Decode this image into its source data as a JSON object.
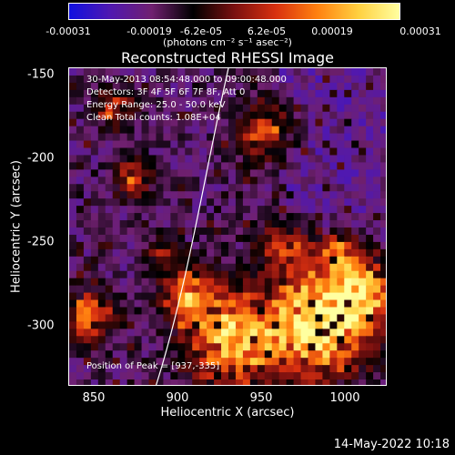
{
  "colorbar": {
    "ticks": [
      "-0.00031",
      "-0.00019",
      "-6.2e-05",
      "6.2e-05",
      "0.00019",
      "0.00031"
    ],
    "unit_label": "(photons cm⁻² s⁻¹ asec⁻²)",
    "colors": [
      "#1010e0",
      "#5018b0",
      "#702070",
      "#000000",
      "#7a1010",
      "#d83010",
      "#ff8010",
      "#ffd040",
      "#ffffa0"
    ]
  },
  "title": "Reconstructed RHESSI Image",
  "annotations": {
    "time_range": "30-May-2013 08:54:48.000 to 09:00:48.000",
    "detectors": "Detectors: 3F 4F 5F 6F 7F 8F, Att 0",
    "energy_range": "Energy Range: 25.0 - 50.0 keV",
    "clean": "Clean     Total counts: 1.08E+04",
    "peak": "Position of Peak = [937,-335]"
  },
  "axes": {
    "xlabel": "Heliocentric X (arcsec)",
    "ylabel": "Heliocentric Y (arcsec)",
    "xticks": [
      "850",
      "900",
      "950",
      "1000"
    ],
    "yticks": [
      "-150",
      "-200",
      "-250",
      "-300"
    ],
    "xlim": [
      835,
      1025
    ],
    "ylim": [
      -335,
      -145
    ]
  },
  "footer": {
    "timestamp": "14-May-2022 10:18"
  }
}
